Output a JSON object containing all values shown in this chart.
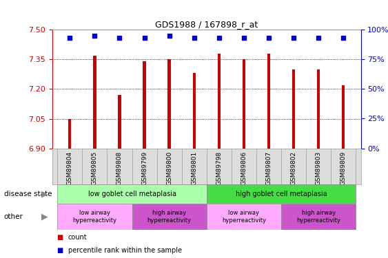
{
  "title": "GDS1988 / 167898_r_at",
  "samples": [
    "GSM89804",
    "GSM89805",
    "GSM89808",
    "GSM89799",
    "GSM89800",
    "GSM89801",
    "GSM89798",
    "GSM89806",
    "GSM89807",
    "GSM89802",
    "GSM89803",
    "GSM89809"
  ],
  "bar_values": [
    7.05,
    7.37,
    7.17,
    7.34,
    7.35,
    7.28,
    7.38,
    7.35,
    7.38,
    7.3,
    7.3,
    7.22
  ],
  "percentile_values": [
    7.46,
    7.47,
    7.46,
    7.46,
    7.47,
    7.46,
    7.46,
    7.46,
    7.46,
    7.46,
    7.46,
    7.46
  ],
  "bar_color": "#CC0000",
  "percentile_color": "#0000CC",
  "ylim_left": [
    6.9,
    7.5
  ],
  "yticks_left": [
    6.9,
    7.05,
    7.2,
    7.35,
    7.5
  ],
  "ylim_right": [
    0,
    100
  ],
  "yticks_right": [
    0,
    25,
    50,
    75,
    100
  ],
  "yticklabels_right": [
    "0%",
    "25%",
    "50%",
    "75%",
    "100%"
  ],
  "disease_state_groups": [
    {
      "label": "low goblet cell metaplasia",
      "start": 0,
      "end": 6,
      "color": "#AAFFAA"
    },
    {
      "label": "high goblet cell metaplasia",
      "start": 6,
      "end": 12,
      "color": "#44DD44"
    }
  ],
  "other_groups": [
    {
      "label": "low airway\nhyperreactivity",
      "start": 0,
      "end": 3,
      "color": "#FFAAFF"
    },
    {
      "label": "high airway\nhyperreactivity",
      "start": 3,
      "end": 6,
      "color": "#CC55CC"
    },
    {
      "label": "low airway\nhyperreactivity",
      "start": 6,
      "end": 9,
      "color": "#FFAAFF"
    },
    {
      "label": "high airway\nhyperreactivity",
      "start": 9,
      "end": 12,
      "color": "#CC55CC"
    }
  ],
  "legend_items": [
    {
      "color": "#CC0000",
      "label": "count"
    },
    {
      "color": "#0000CC",
      "label": "percentile rank within the sample"
    }
  ],
  "left_label_disease": "disease state",
  "left_label_other": "other",
  "bar_width": 0.12,
  "n_samples": 12
}
